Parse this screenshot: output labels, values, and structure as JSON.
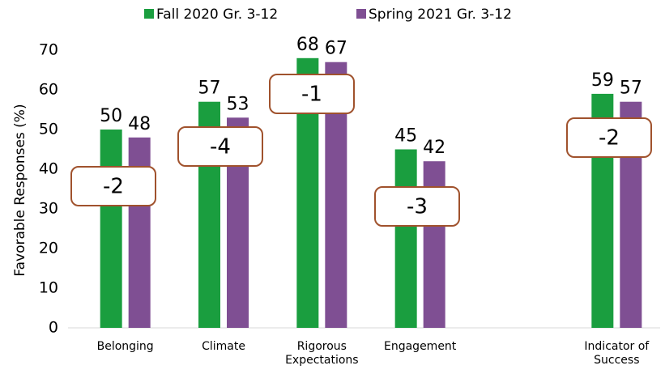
{
  "chart_data": {
    "type": "bar",
    "y_label": "Favorable Responses (%)",
    "categories": [
      "Belonging",
      "Climate",
      "Rigorous Expectations",
      "Engagement",
      null,
      "Indicator of Success"
    ],
    "series": [
      {
        "name": "Fall 2020 Gr. 3-12",
        "color": "#1a9e3f",
        "values": [
          50,
          57,
          68,
          45,
          null,
          59
        ]
      },
      {
        "name": "Spring 2021 Gr. 3-12",
        "color": "#7f4f93",
        "values": [
          48,
          53,
          67,
          42,
          null,
          57
        ]
      }
    ],
    "annotations": [
      "-2",
      "-4",
      "-1",
      "-3",
      null,
      "-2"
    ],
    "ylim": [
      0,
      70
    ],
    "yticks": [
      0,
      10,
      20,
      30,
      40,
      50,
      60,
      70
    ],
    "grid": false,
    "legend": "top"
  }
}
